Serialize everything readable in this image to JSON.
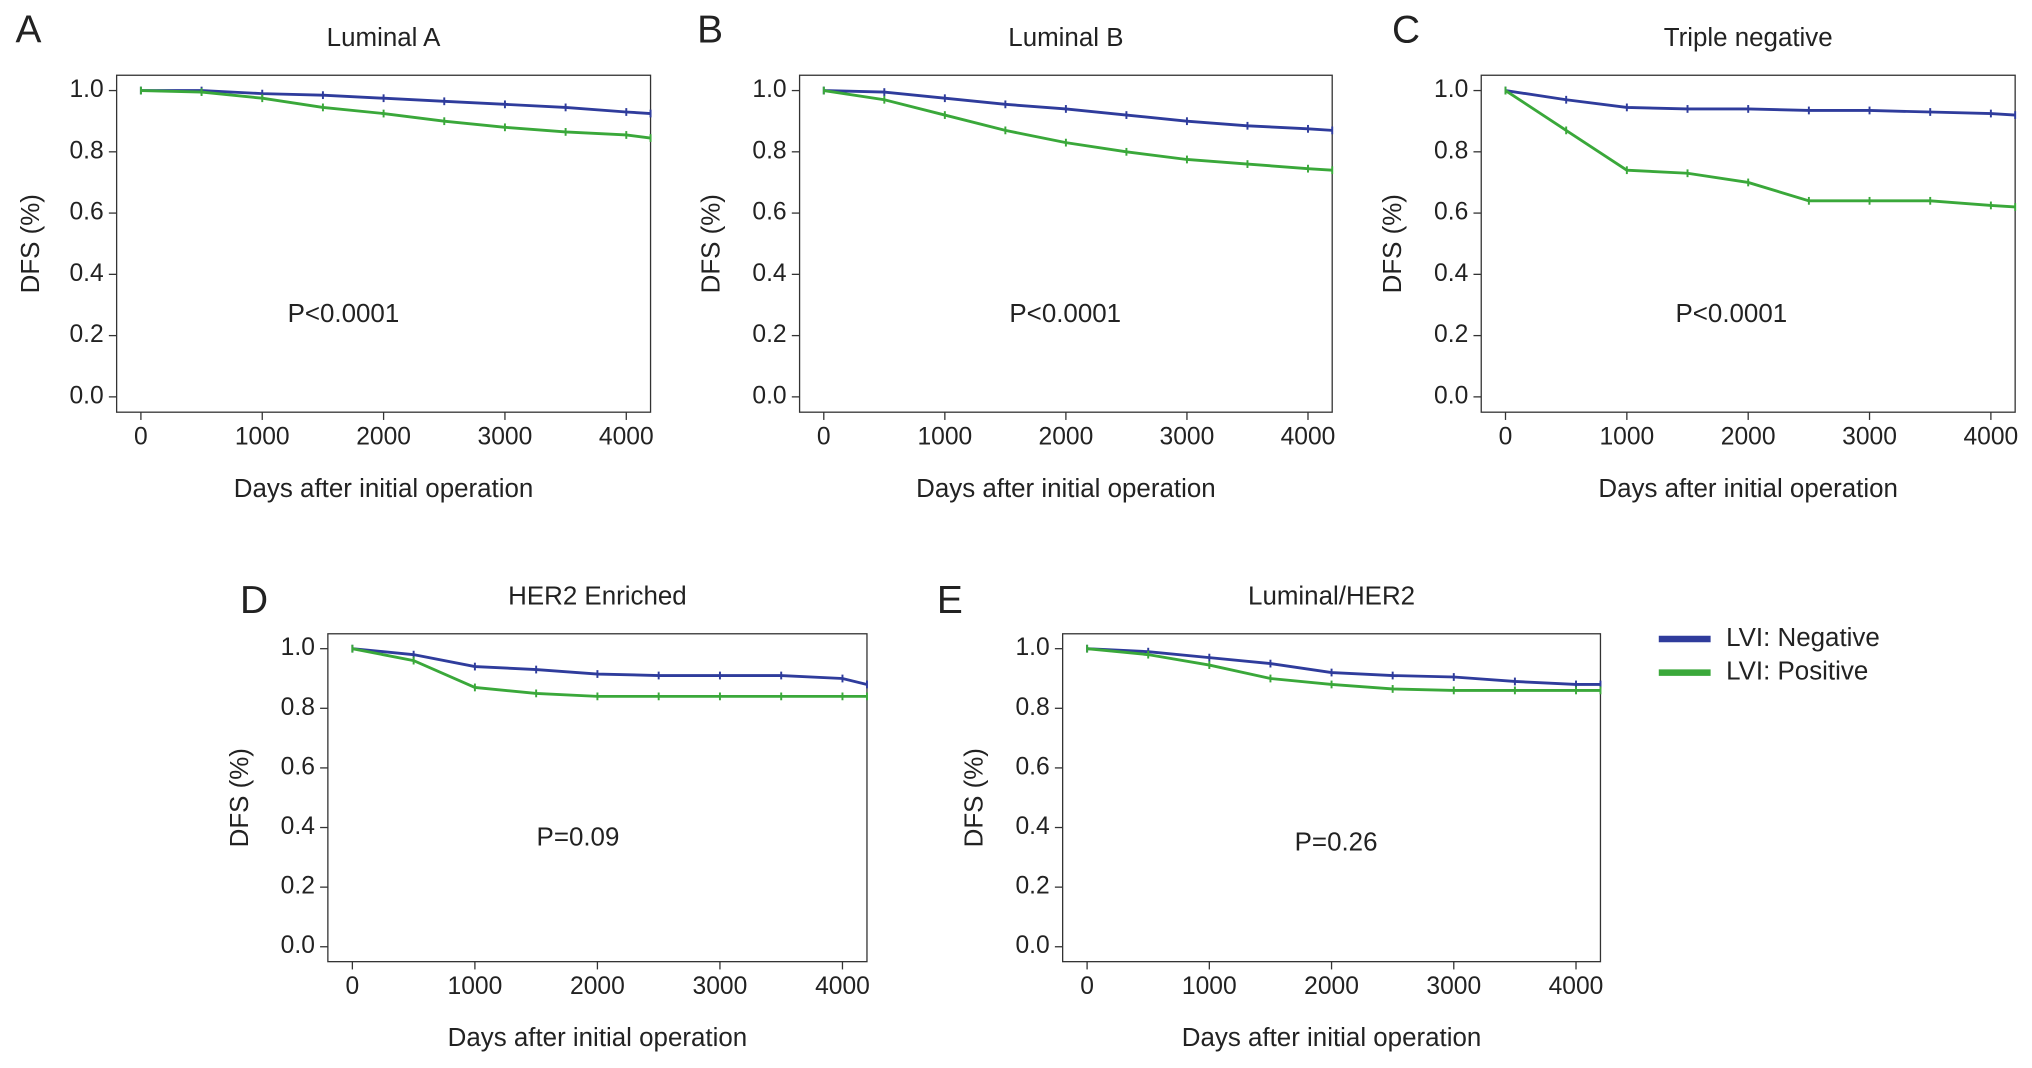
{
  "chart_data": [
    {
      "type": "line",
      "panel": "A",
      "title": "Luminal A",
      "x_label": "Days after initial operation",
      "y_label": "DFS (%)",
      "annotation": "P<0.0001",
      "x": [
        0,
        500,
        1000,
        1500,
        2000,
        2500,
        3000,
        3500,
        4000,
        4200
      ],
      "series": [
        {
          "color": "#2f3c9c",
          "values": [
            1.0,
            1.0,
            0.99,
            0.985,
            0.975,
            0.965,
            0.955,
            0.945,
            0.93,
            0.925
          ]
        },
        {
          "color": "#3aa83a",
          "values": [
            1.0,
            0.995,
            0.975,
            0.945,
            0.925,
            0.9,
            0.88,
            0.865,
            0.855,
            0.845
          ]
        }
      ],
      "xlim": [
        -200,
        4200
      ],
      "ylim": [
        -0.05,
        1.05
      ],
      "xticks": [
        0,
        1000,
        2000,
        3000,
        4000
      ],
      "yticks": [
        {
          "value": 0,
          "label": "0.0"
        },
        0.2,
        0.4,
        0.6,
        0.8,
        {
          "value": 1,
          "label": "1.0"
        }
      ]
    },
    {
      "type": "line",
      "panel": "B",
      "title": "Luminal B",
      "x_label": "Days after initial operation",
      "y_label": "DFS (%)",
      "annotation": "P<0.0001",
      "x": [
        0,
        500,
        1000,
        1500,
        2000,
        2500,
        3000,
        3500,
        4000,
        4200
      ],
      "series": [
        {
          "color": "#2f3c9c",
          "values": [
            1.0,
            0.995,
            0.975,
            0.955,
            0.94,
            0.92,
            0.9,
            0.885,
            0.875,
            0.87
          ]
        },
        {
          "color": "#3aa83a",
          "values": [
            1.0,
            0.97,
            0.92,
            0.87,
            0.83,
            0.8,
            0.775,
            0.76,
            0.745,
            0.74
          ]
        }
      ],
      "xlim": [
        -200,
        4200
      ],
      "ylim": [
        -0.05,
        1.05
      ],
      "xticks": [
        0,
        1000,
        2000,
        3000,
        4000
      ],
      "yticks": [
        {
          "value": 0,
          "label": "0.0"
        },
        0.2,
        0.4,
        0.6,
        0.8,
        {
          "value": 1,
          "label": "1.0"
        }
      ]
    },
    {
      "type": "line",
      "panel": "C",
      "title": "Triple negative",
      "x_label": "Days after initial operation",
      "y_label": "DFS (%)",
      "annotation": "P<0.0001",
      "x": [
        0,
        500,
        1000,
        1500,
        2000,
        2500,
        3000,
        3500,
        4000,
        4200
      ],
      "series": [
        {
          "color": "#2f3c9c",
          "values": [
            1.0,
            0.97,
            0.945,
            0.94,
            0.94,
            0.935,
            0.935,
            0.93,
            0.925,
            0.92
          ]
        },
        {
          "color": "#3aa83a",
          "values": [
            1.0,
            0.87,
            0.74,
            0.73,
            0.7,
            0.64,
            0.64,
            0.64,
            0.625,
            0.62
          ]
        }
      ],
      "xlim": [
        -200,
        4200
      ],
      "ylim": [
        -0.05,
        1.05
      ],
      "xticks": [
        0,
        1000,
        2000,
        3000,
        4000
      ],
      "yticks": [
        {
          "value": 0,
          "label": "0.0"
        },
        0.2,
        0.4,
        0.6,
        0.8,
        {
          "value": 1,
          "label": "1.0"
        }
      ]
    },
    {
      "type": "line",
      "panel": "D",
      "title": "HER2 Enriched",
      "x_label": "Days after initial operation",
      "y_label": "DFS (%)",
      "annotation": "P=0.09",
      "x": [
        0,
        500,
        1000,
        1500,
        2000,
        2500,
        3000,
        3500,
        4000,
        4200
      ],
      "series": [
        {
          "color": "#2f3c9c",
          "values": [
            1.0,
            0.98,
            0.94,
            0.93,
            0.915,
            0.91,
            0.91,
            0.91,
            0.9,
            0.88
          ]
        },
        {
          "color": "#3aa83a",
          "values": [
            1.0,
            0.96,
            0.87,
            0.85,
            0.84,
            0.84,
            0.84,
            0.84,
            0.84,
            0.84
          ]
        }
      ],
      "xlim": [
        -200,
        4200
      ],
      "ylim": [
        -0.05,
        1.05
      ],
      "xticks": [
        0,
        1000,
        2000,
        3000,
        4000
      ],
      "yticks": [
        {
          "value": 0,
          "label": "0.0"
        },
        0.2,
        0.4,
        0.6,
        0.8,
        {
          "value": 1,
          "label": "1.0"
        }
      ]
    },
    {
      "type": "line",
      "panel": "E",
      "title": "Luminal/HER2",
      "x_label": "Days after initial operation",
      "y_label": "DFS (%)",
      "annotation": "P=0.26",
      "x": [
        0,
        500,
        1000,
        1500,
        2000,
        2500,
        3000,
        3500,
        4000,
        4200
      ],
      "series": [
        {
          "name": "LVI: Negative",
          "color": "#2f3c9c",
          "values": [
            1.0,
            0.99,
            0.97,
            0.95,
            0.92,
            0.91,
            0.905,
            0.89,
            0.88,
            0.88
          ]
        },
        {
          "name": "LVI: Positive",
          "color": "#3aa83a",
          "values": [
            1.0,
            0.98,
            0.945,
            0.9,
            0.88,
            0.865,
            0.86,
            0.86,
            0.86,
            0.86
          ]
        }
      ],
      "xlim": [
        -200,
        4200
      ],
      "ylim": [
        -0.05,
        1.05
      ],
      "xticks": [
        0,
        1000,
        2000,
        3000,
        4000
      ],
      "yticks": [
        {
          "value": 0,
          "label": "0.0"
        },
        0.2,
        0.4,
        0.6,
        0.8,
        {
          "value": 1,
          "label": "1.0"
        }
      ]
    }
  ]
}
